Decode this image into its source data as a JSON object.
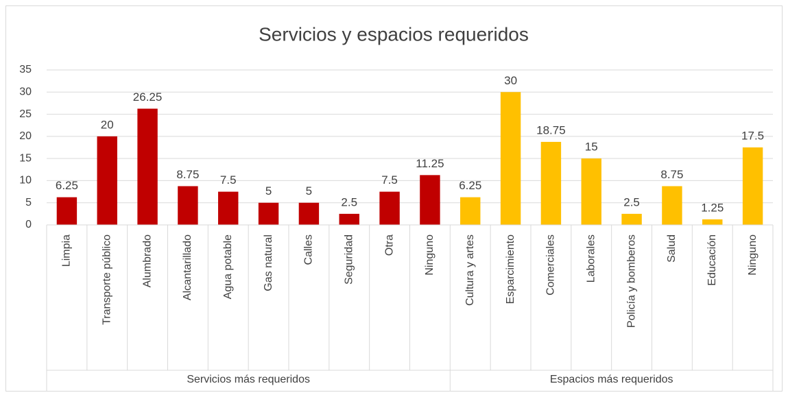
{
  "chart_data": {
    "type": "bar",
    "title": "Servicios y espacios requeridos",
    "groups": [
      {
        "name": "Servicios más requeridos",
        "color": "#c00000",
        "categories": [
          "Limpia",
          "Transporte público",
          "Alumbrado",
          "Alcantarillado",
          "Agua potable",
          "Gas natural",
          "Calles",
          "Seguridad",
          "Otra",
          "Ninguno"
        ],
        "values": [
          6.25,
          20,
          26.25,
          8.75,
          7.5,
          5,
          5,
          2.5,
          7.5,
          11.25
        ]
      },
      {
        "name": "Espacios más requeridos",
        "color": "#ffc000",
        "categories": [
          "Cultura y artes",
          "Esparcimiento",
          "Comerciales",
          "Laborales",
          "Policía y bomberos",
          "Salud",
          "Educación",
          "Ninguno"
        ],
        "values": [
          6.25,
          30,
          18.75,
          15,
          2.5,
          8.75,
          1.25,
          17.5
        ]
      }
    ],
    "ylim": [
      0,
      35
    ],
    "yticks": [
      0,
      5,
      10,
      15,
      20,
      25,
      30,
      35
    ],
    "grid": true
  }
}
